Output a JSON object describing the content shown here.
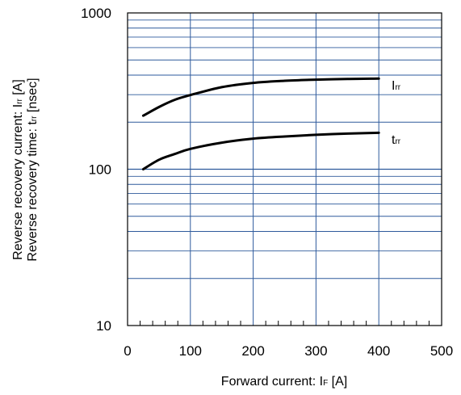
{
  "chart_data": {
    "type": "line",
    "title": "",
    "xlabel": {
      "main": "Forward current: I",
      "sub": "F",
      "tail": " [A]"
    },
    "ylabel": [
      {
        "main": "Reverse recovery current: I",
        "sub": "rr",
        "tail": " [A]"
      },
      {
        "main": "Reverse recovery time: t",
        "sub": "rr",
        "tail": " [nsec]"
      }
    ],
    "xlim": [
      0,
      500
    ],
    "ylim": [
      10,
      1000
    ],
    "yscale": "log",
    "grid": true,
    "x_ticks": [
      0,
      100,
      200,
      300,
      400,
      500
    ],
    "x_tick_labels": [
      "0",
      "100",
      "200",
      "300",
      "400",
      "500"
    ],
    "y_ticks": [
      10,
      100,
      1000
    ],
    "y_tick_labels": [
      "10",
      "100",
      "1000"
    ],
    "series": [
      {
        "name": "Irr",
        "label": {
          "main": "I",
          "sub": "rr"
        },
        "color": "#000000",
        "x": [
          25,
          50,
          75,
          100,
          150,
          200,
          250,
          300,
          350,
          400
        ],
        "y": [
          220,
          250,
          278,
          298,
          335,
          357,
          368,
          374,
          378,
          380
        ]
      },
      {
        "name": "trr",
        "label": {
          "main": "t",
          "sub": "rr"
        },
        "color": "#000000",
        "x": [
          25,
          50,
          75,
          100,
          150,
          200,
          250,
          300,
          350,
          400
        ],
        "y": [
          100,
          115,
          125,
          135,
          148,
          157,
          162,
          166,
          169,
          171
        ]
      }
    ],
    "grid_color": "#2e5a9c"
  }
}
